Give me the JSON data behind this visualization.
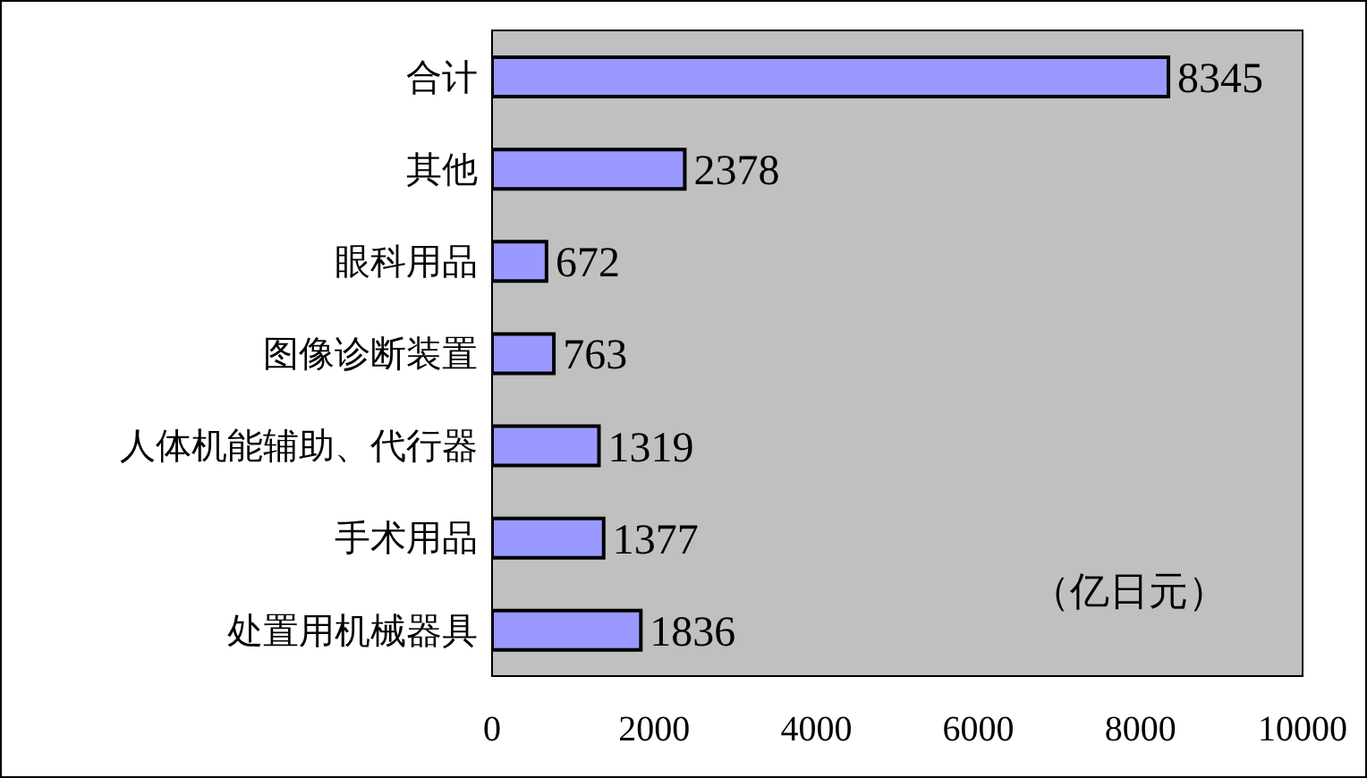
{
  "chart_data": {
    "type": "bar",
    "orientation": "horizontal",
    "categories": [
      "合计",
      "其他",
      "眼科用品",
      "图像诊断装置",
      "人体机能辅助、代行器",
      "手术用品",
      "处置用机械器具"
    ],
    "values": [
      8345,
      2378,
      672,
      763,
      1319,
      1377,
      1836
    ],
    "color": "#9999ff",
    "xlim": [
      0,
      10000
    ],
    "xticks": [
      0,
      2000,
      4000,
      6000,
      8000,
      10000
    ],
    "data_labels": true,
    "grid": false,
    "annotations": [
      "（亿日元）"
    ]
  }
}
